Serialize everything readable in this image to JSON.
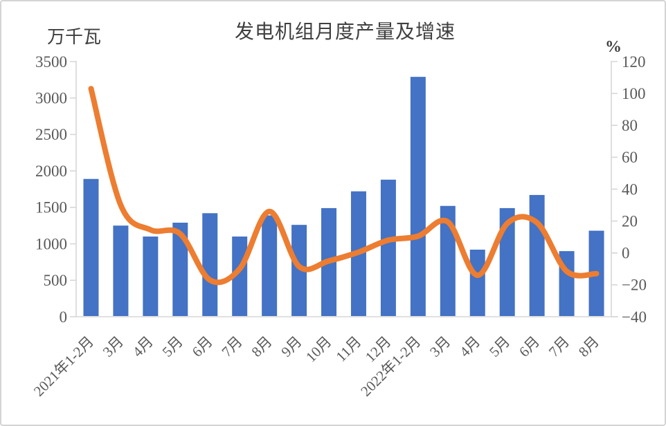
{
  "chart": {
    "title": "发电机组月度产量及增速",
    "left_axis_unit": "万千瓦",
    "right_axis_unit": "%"
  },
  "chart_data": {
    "type": "bar",
    "combo": "bar+line",
    "title": "发电机组月度产量及增速",
    "categories": [
      "2021年1-2月",
      "3月",
      "4月",
      "5月",
      "6月",
      "7月",
      "8月",
      "9月",
      "10月",
      "11月",
      "12月",
      "2022年1-2月",
      "3月",
      "4月",
      "5月",
      "6月",
      "7月",
      "8月"
    ],
    "series": [
      {
        "name": "产量",
        "type": "bar",
        "axis": "left",
        "unit": "万千瓦",
        "color": "#4472C4",
        "values": [
          1890,
          1250,
          1100,
          1290,
          1420,
          1100,
          1390,
          1260,
          1490,
          1720,
          1880,
          3290,
          1520,
          920,
          1490,
          1670,
          900,
          1180
        ]
      },
      {
        "name": "增速",
        "type": "line",
        "axis": "right",
        "unit": "%",
        "color": "#ED7D31",
        "values": [
          103,
          30,
          14.5,
          12,
          -17,
          -10,
          26,
          -8.5,
          -5,
          0.5,
          8,
          10.5,
          19.5,
          -14,
          18.5,
          19,
          -11.5,
          -13
        ]
      }
    ],
    "left_axis": {
      "unit": "万千瓦",
      "min": 0,
      "max": 3500,
      "step": 500
    },
    "right_axis": {
      "unit": "%",
      "min": -40,
      "max": 120,
      "step": 20
    },
    "grid": false,
    "legend": "none"
  },
  "colors": {
    "bar": "#4472C4",
    "line": "#ED7D31",
    "axis": "#D6D6D6",
    "tick_text": "#595959",
    "title_text": "#3F3F3F",
    "border": "#D4D4D4",
    "background": "#FFFFFF"
  }
}
